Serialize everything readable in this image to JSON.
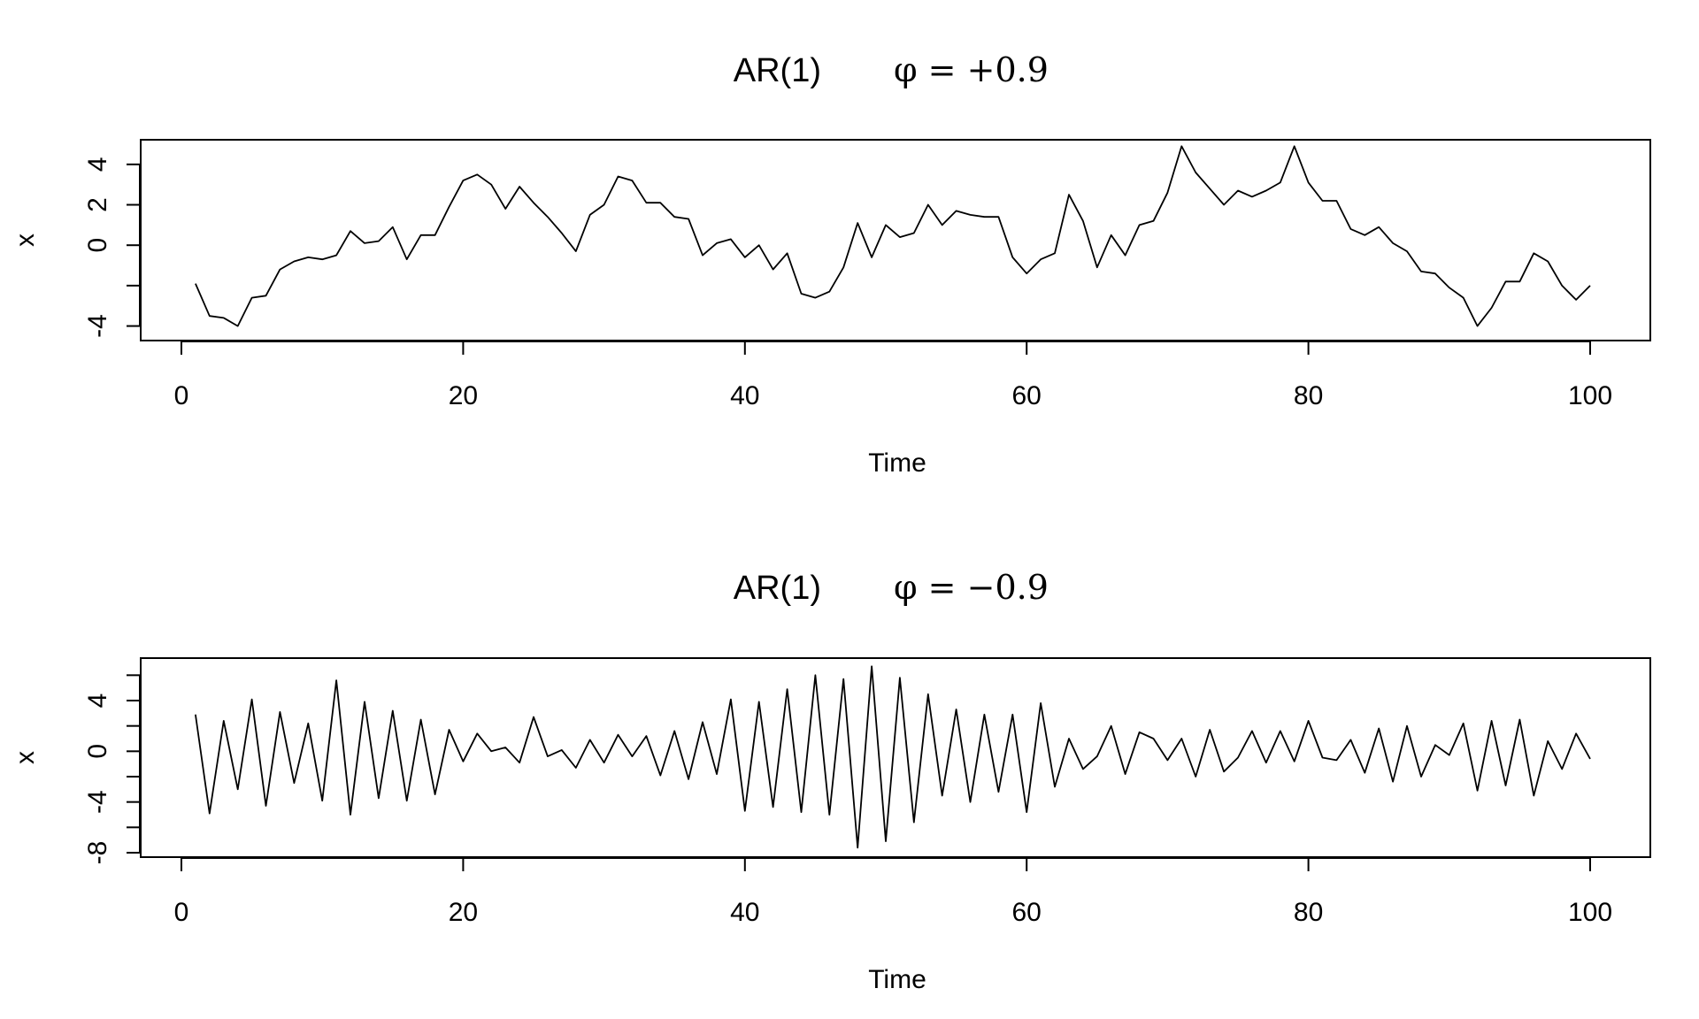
{
  "chart_data": [
    {
      "type": "line",
      "title_main": "AR(1)",
      "title_phi": "φ = +0.9",
      "xlabel": "Time",
      "ylabel": "x",
      "xlim": [
        0,
        100
      ],
      "ylim": [
        -4.5,
        5
      ],
      "xticks": [
        0,
        20,
        40,
        60,
        80,
        100
      ],
      "yticks": [
        -4,
        -2,
        0,
        2,
        4
      ],
      "ytick_labels": [
        "-4",
        "",
        "0",
        "2",
        "4"
      ],
      "grid": false,
      "x": [
        1,
        2,
        3,
        4,
        5,
        6,
        7,
        8,
        9,
        10,
        11,
        12,
        13,
        14,
        15,
        16,
        17,
        18,
        19,
        20,
        21,
        22,
        23,
        24,
        25,
        26,
        27,
        28,
        29,
        30,
        31,
        32,
        33,
        34,
        35,
        36,
        37,
        38,
        39,
        40,
        41,
        42,
        43,
        44,
        45,
        46,
        47,
        48,
        49,
        50,
        51,
        52,
        53,
        54,
        55,
        56,
        57,
        58,
        59,
        60,
        61,
        62,
        63,
        64,
        65,
        66,
        67,
        68,
        69,
        70,
        71,
        72,
        73,
        74,
        75,
        76,
        77,
        78,
        79,
        80,
        81,
        82,
        83,
        84,
        85,
        86,
        87,
        88,
        89,
        90,
        91,
        92,
        93,
        94,
        95,
        96,
        97,
        98,
        99,
        100
      ],
      "series": [
        {
          "values": [
            -1.9,
            -3.5,
            -3.6,
            -4.0,
            -2.6,
            -2.5,
            -1.2,
            -0.8,
            -0.6,
            -0.7,
            -0.5,
            0.7,
            0.1,
            0.2,
            0.9,
            -0.7,
            0.5,
            0.5,
            1.9,
            3.2,
            3.5,
            3.0,
            1.8,
            2.9,
            2.1,
            1.4,
            0.6,
            -0.3,
            1.5,
            2.0,
            3.4,
            3.2,
            2.1,
            2.1,
            1.4,
            1.3,
            -0.5,
            0.1,
            0.3,
            -0.6,
            0.0,
            -1.2,
            -0.4,
            -2.4,
            -2.6,
            -2.3,
            -1.1,
            1.1,
            -0.6,
            1.0,
            0.4,
            0.6,
            2.0,
            1.0,
            1.7,
            1.5,
            1.4,
            1.4,
            -0.6,
            -1.4,
            -0.7,
            -0.4,
            2.5,
            1.2,
            -1.1,
            0.5,
            -0.5,
            1.0,
            1.2,
            2.6,
            4.9,
            3.6,
            2.8,
            2.0,
            2.7,
            2.4,
            2.7,
            3.1,
            4.9,
            3.1,
            2.2,
            2.2,
            0.8,
            0.5,
            0.9,
            0.1,
            -0.3,
            -1.3,
            -1.4,
            -2.1,
            -2.6,
            -4.0,
            -3.1,
            -1.8,
            -1.8,
            -0.4,
            -0.8,
            -2.0,
            -2.7,
            -2.0
          ]
        }
      ]
    },
    {
      "type": "line",
      "title_main": "AR(1)",
      "title_phi": "φ = −0.9",
      "xlabel": "Time",
      "ylabel": "x",
      "xlim": [
        0,
        100
      ],
      "ylim": [
        -8,
        7
      ],
      "xticks": [
        0,
        20,
        40,
        60,
        80,
        100
      ],
      "yticks": [
        -8,
        -6,
        -4,
        -2,
        0,
        2,
        4,
        6
      ],
      "ytick_labels": [
        "-8",
        "",
        "-4",
        "",
        "0",
        "",
        "4",
        ""
      ],
      "grid": false,
      "x": [
        1,
        2,
        3,
        4,
        5,
        6,
        7,
        8,
        9,
        10,
        11,
        12,
        13,
        14,
        15,
        16,
        17,
        18,
        19,
        20,
        21,
        22,
        23,
        24,
        25,
        26,
        27,
        28,
        29,
        30,
        31,
        32,
        33,
        34,
        35,
        36,
        37,
        38,
        39,
        40,
        41,
        42,
        43,
        44,
        45,
        46,
        47,
        48,
        49,
        50,
        51,
        52,
        53,
        54,
        55,
        56,
        57,
        58,
        59,
        60,
        61,
        62,
        63,
        64,
        65,
        66,
        67,
        68,
        69,
        70,
        71,
        72,
        73,
        74,
        75,
        76,
        77,
        78,
        79,
        80,
        81,
        82,
        83,
        84,
        85,
        86,
        87,
        88,
        89,
        90,
        91,
        92,
        93,
        94,
        95,
        96,
        97,
        98,
        99,
        100
      ],
      "series": [
        {
          "values": [
            2.9,
            -4.9,
            2.4,
            -3.0,
            4.1,
            -4.3,
            3.1,
            -2.5,
            2.2,
            -3.9,
            5.6,
            -5.0,
            3.9,
            -3.7,
            3.2,
            -3.9,
            2.5,
            -3.4,
            1.7,
            -0.8,
            1.4,
            0.0,
            0.3,
            -0.9,
            2.7,
            -0.4,
            0.1,
            -1.3,
            0.9,
            -0.9,
            1.3,
            -0.4,
            1.2,
            -1.9,
            1.6,
            -2.2,
            2.3,
            -1.8,
            4.1,
            -4.7,
            3.9,
            -4.4,
            4.9,
            -4.8,
            6.0,
            -5.0,
            5.7,
            -7.6,
            6.7,
            -7.1,
            5.8,
            -5.6,
            4.5,
            -3.5,
            3.3,
            -4.0,
            2.9,
            -3.2,
            2.9,
            -4.8,
            3.8,
            -2.8,
            1.0,
            -1.4,
            -0.4,
            2.0,
            -1.8,
            1.5,
            1.0,
            -0.7,
            1.0,
            -2.0,
            1.7,
            -1.6,
            -0.5,
            1.6,
            -0.9,
            1.6,
            -0.8,
            2.4,
            -0.5,
            -0.7,
            0.9,
            -1.7,
            1.8,
            -2.4,
            2.0,
            -2.0,
            0.5,
            -0.3,
            2.2,
            -3.1,
            2.4,
            -2.7,
            2.5,
            -3.5,
            0.8,
            -1.4,
            1.4,
            -0.6
          ]
        }
      ]
    }
  ]
}
